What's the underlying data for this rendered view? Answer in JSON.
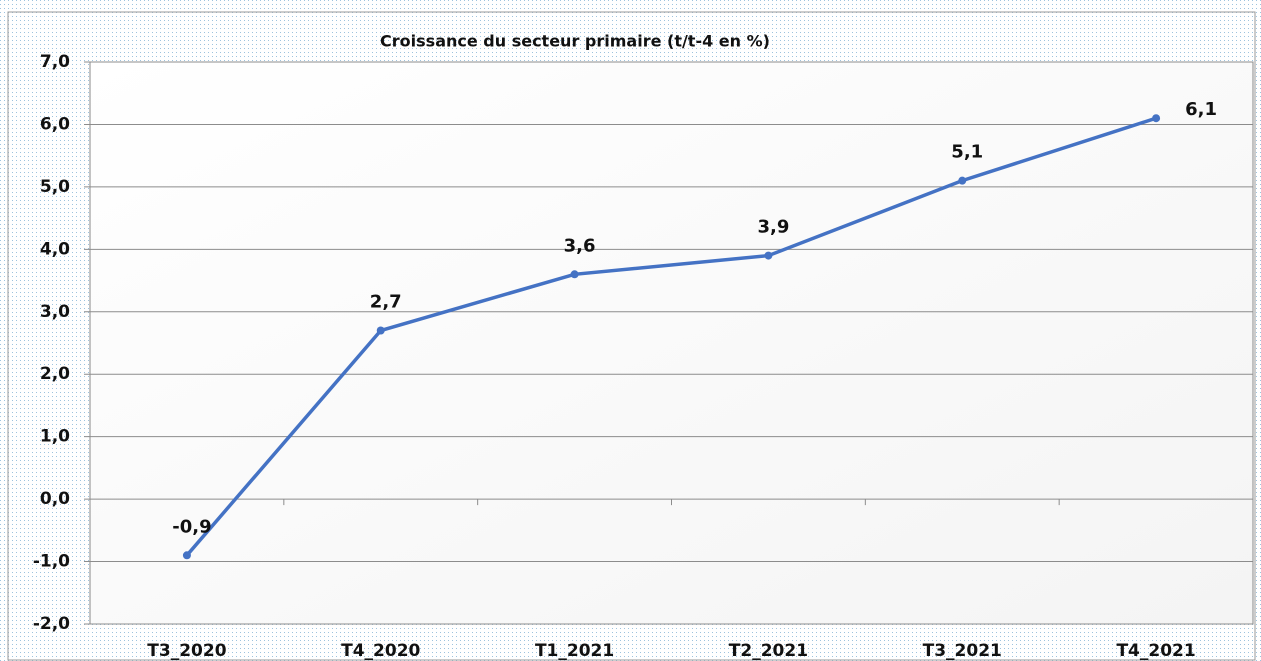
{
  "chart_data": {
    "type": "line",
    "title": "Croissance du secteur primaire (t/t-4 en %)",
    "categories": [
      "T3_2020",
      "T4_2020",
      "T1_2021",
      "T2_2021",
      "T3_2021",
      "T4_2021"
    ],
    "series": [
      {
        "name": "Croissance du secteur primaire",
        "color": "#4472c4",
        "values": [
          -0.9,
          2.7,
          3.6,
          3.9,
          5.1,
          6.1
        ],
        "value_labels": [
          "-0,9",
          "2,7",
          "3,6",
          "3,9",
          "5,1",
          "6,1"
        ]
      }
    ],
    "ylim": [
      -2,
      7
    ],
    "yticks": [
      {
        "value": -2,
        "label": "-2,0"
      },
      {
        "value": -1,
        "label": "-1,0"
      },
      {
        "value": 0,
        "label": "0,0"
      },
      {
        "value": 1,
        "label": "1,0"
      },
      {
        "value": 2,
        "label": "2,0"
      },
      {
        "value": 3,
        "label": "3,0"
      },
      {
        "value": 4,
        "label": "4,0"
      },
      {
        "value": 5,
        "label": "5,0"
      },
      {
        "value": 6,
        "label": "6,0"
      },
      {
        "value": 7,
        "label": "7,0"
      }
    ],
    "grid": true
  }
}
